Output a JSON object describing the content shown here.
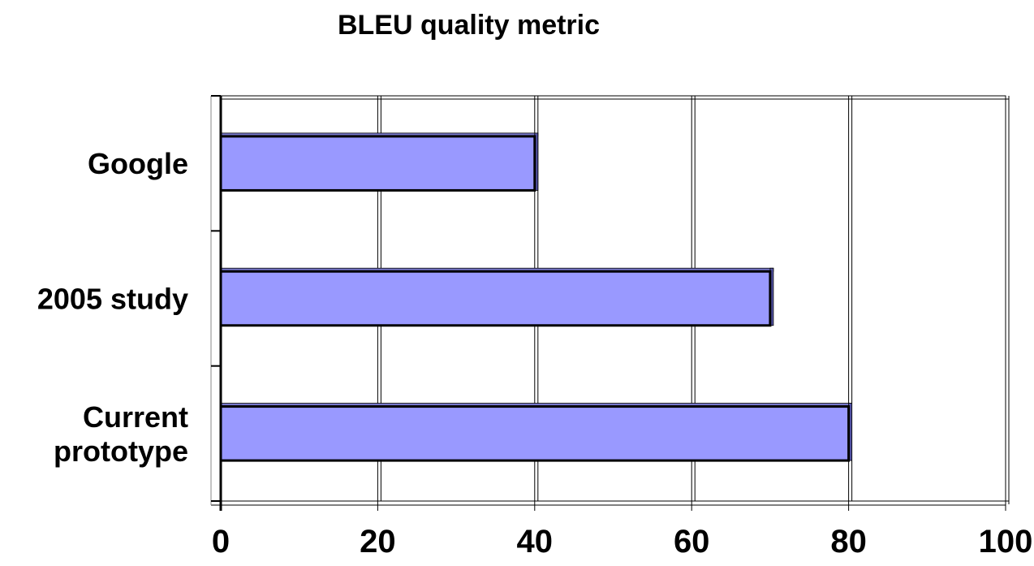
{
  "chart_data": {
    "type": "bar",
    "orientation": "horizontal",
    "title": "BLEU quality metric",
    "categories": [
      [
        "Google"
      ],
      [
        "2005 study"
      ],
      [
        "Current",
        "prototype"
      ]
    ],
    "values": [
      40,
      70,
      80
    ],
    "xlim": [
      0,
      100
    ],
    "xticks": [
      "0",
      "20",
      "40",
      "60",
      "80",
      "100"
    ],
    "xlabel": "",
    "ylabel": "",
    "grid": "vertical",
    "legend": "none",
    "bar_color": "#9999ff",
    "bar_edge_color": "#000000"
  }
}
